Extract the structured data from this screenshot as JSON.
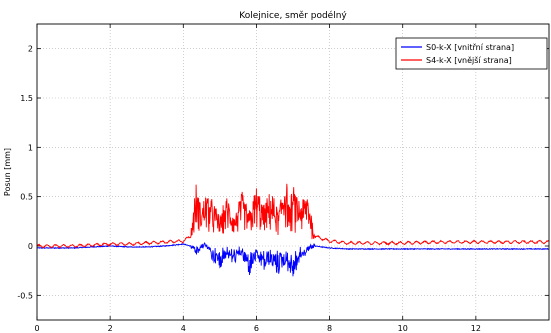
{
  "chart_data": {
    "type": "line",
    "title": "Kolejnice, směr podélný",
    "xlabel": "",
    "ylabel": "Posun [mm]",
    "xlim": [
      0,
      14
    ],
    "ylim": [
      -0.75,
      2.25
    ],
    "xticks": [
      0,
      2,
      4,
      6,
      8,
      10,
      12
    ],
    "yticks": [
      -0.5,
      0,
      0.5,
      1,
      1.5,
      2
    ],
    "xtick_labels": [
      "0",
      "2",
      "4",
      "6",
      "8",
      "10",
      "12"
    ],
    "ytick_labels": [
      "-0.5",
      "0",
      "0.5",
      "1",
      "1.5",
      "2"
    ],
    "grid": true,
    "legend_position": "top-right",
    "series": [
      {
        "name": "S0-k-X [vnitřní strana]",
        "color": "#0000ff",
        "x": [
          0,
          0.5,
          1,
          1.5,
          2,
          2.5,
          3,
          3.5,
          4,
          4.2,
          4.4,
          4.6,
          4.8,
          5.0,
          5.2,
          5.4,
          5.6,
          5.8,
          6.0,
          6.2,
          6.4,
          6.6,
          6.8,
          7.0,
          7.2,
          7.4,
          7.6,
          8.0,
          8.5,
          9,
          10,
          11,
          12,
          13,
          14
        ],
        "y": [
          -0.02,
          -0.02,
          -0.02,
          -0.01,
          0.0,
          -0.01,
          -0.01,
          0.0,
          0.02,
          0.0,
          -0.1,
          0.05,
          -0.15,
          -0.25,
          -0.1,
          -0.2,
          -0.1,
          -0.3,
          -0.15,
          -0.25,
          -0.2,
          -0.3,
          -0.2,
          -0.35,
          -0.15,
          -0.05,
          0.0,
          -0.02,
          -0.03,
          -0.03,
          -0.03,
          -0.03,
          -0.03,
          -0.03,
          -0.03
        ]
      },
      {
        "name": "S4-k-X [vnější strana]",
        "color": "#ff0000",
        "x": [
          0,
          0.5,
          1,
          1.5,
          2,
          2.5,
          3,
          3.5,
          4,
          4.2,
          4.35,
          4.5,
          4.6,
          4.8,
          5.0,
          5.2,
          5.4,
          5.6,
          5.8,
          6.0,
          6.2,
          6.4,
          6.6,
          6.8,
          6.9,
          7.0,
          7.2,
          7.4,
          7.6,
          8.0,
          8.5,
          9,
          10,
          11,
          12,
          13,
          14
        ],
        "y": [
          0.0,
          0.0,
          0.0,
          0.01,
          0.02,
          0.02,
          0.03,
          0.04,
          0.05,
          0.1,
          0.62,
          0.4,
          0.55,
          0.45,
          0.3,
          0.5,
          0.3,
          0.55,
          0.35,
          0.6,
          0.4,
          0.55,
          0.35,
          0.78,
          0.4,
          0.6,
          0.45,
          0.55,
          0.1,
          0.05,
          0.03,
          0.03,
          0.03,
          0.04,
          0.04,
          0.04,
          0.04
        ]
      }
    ]
  }
}
